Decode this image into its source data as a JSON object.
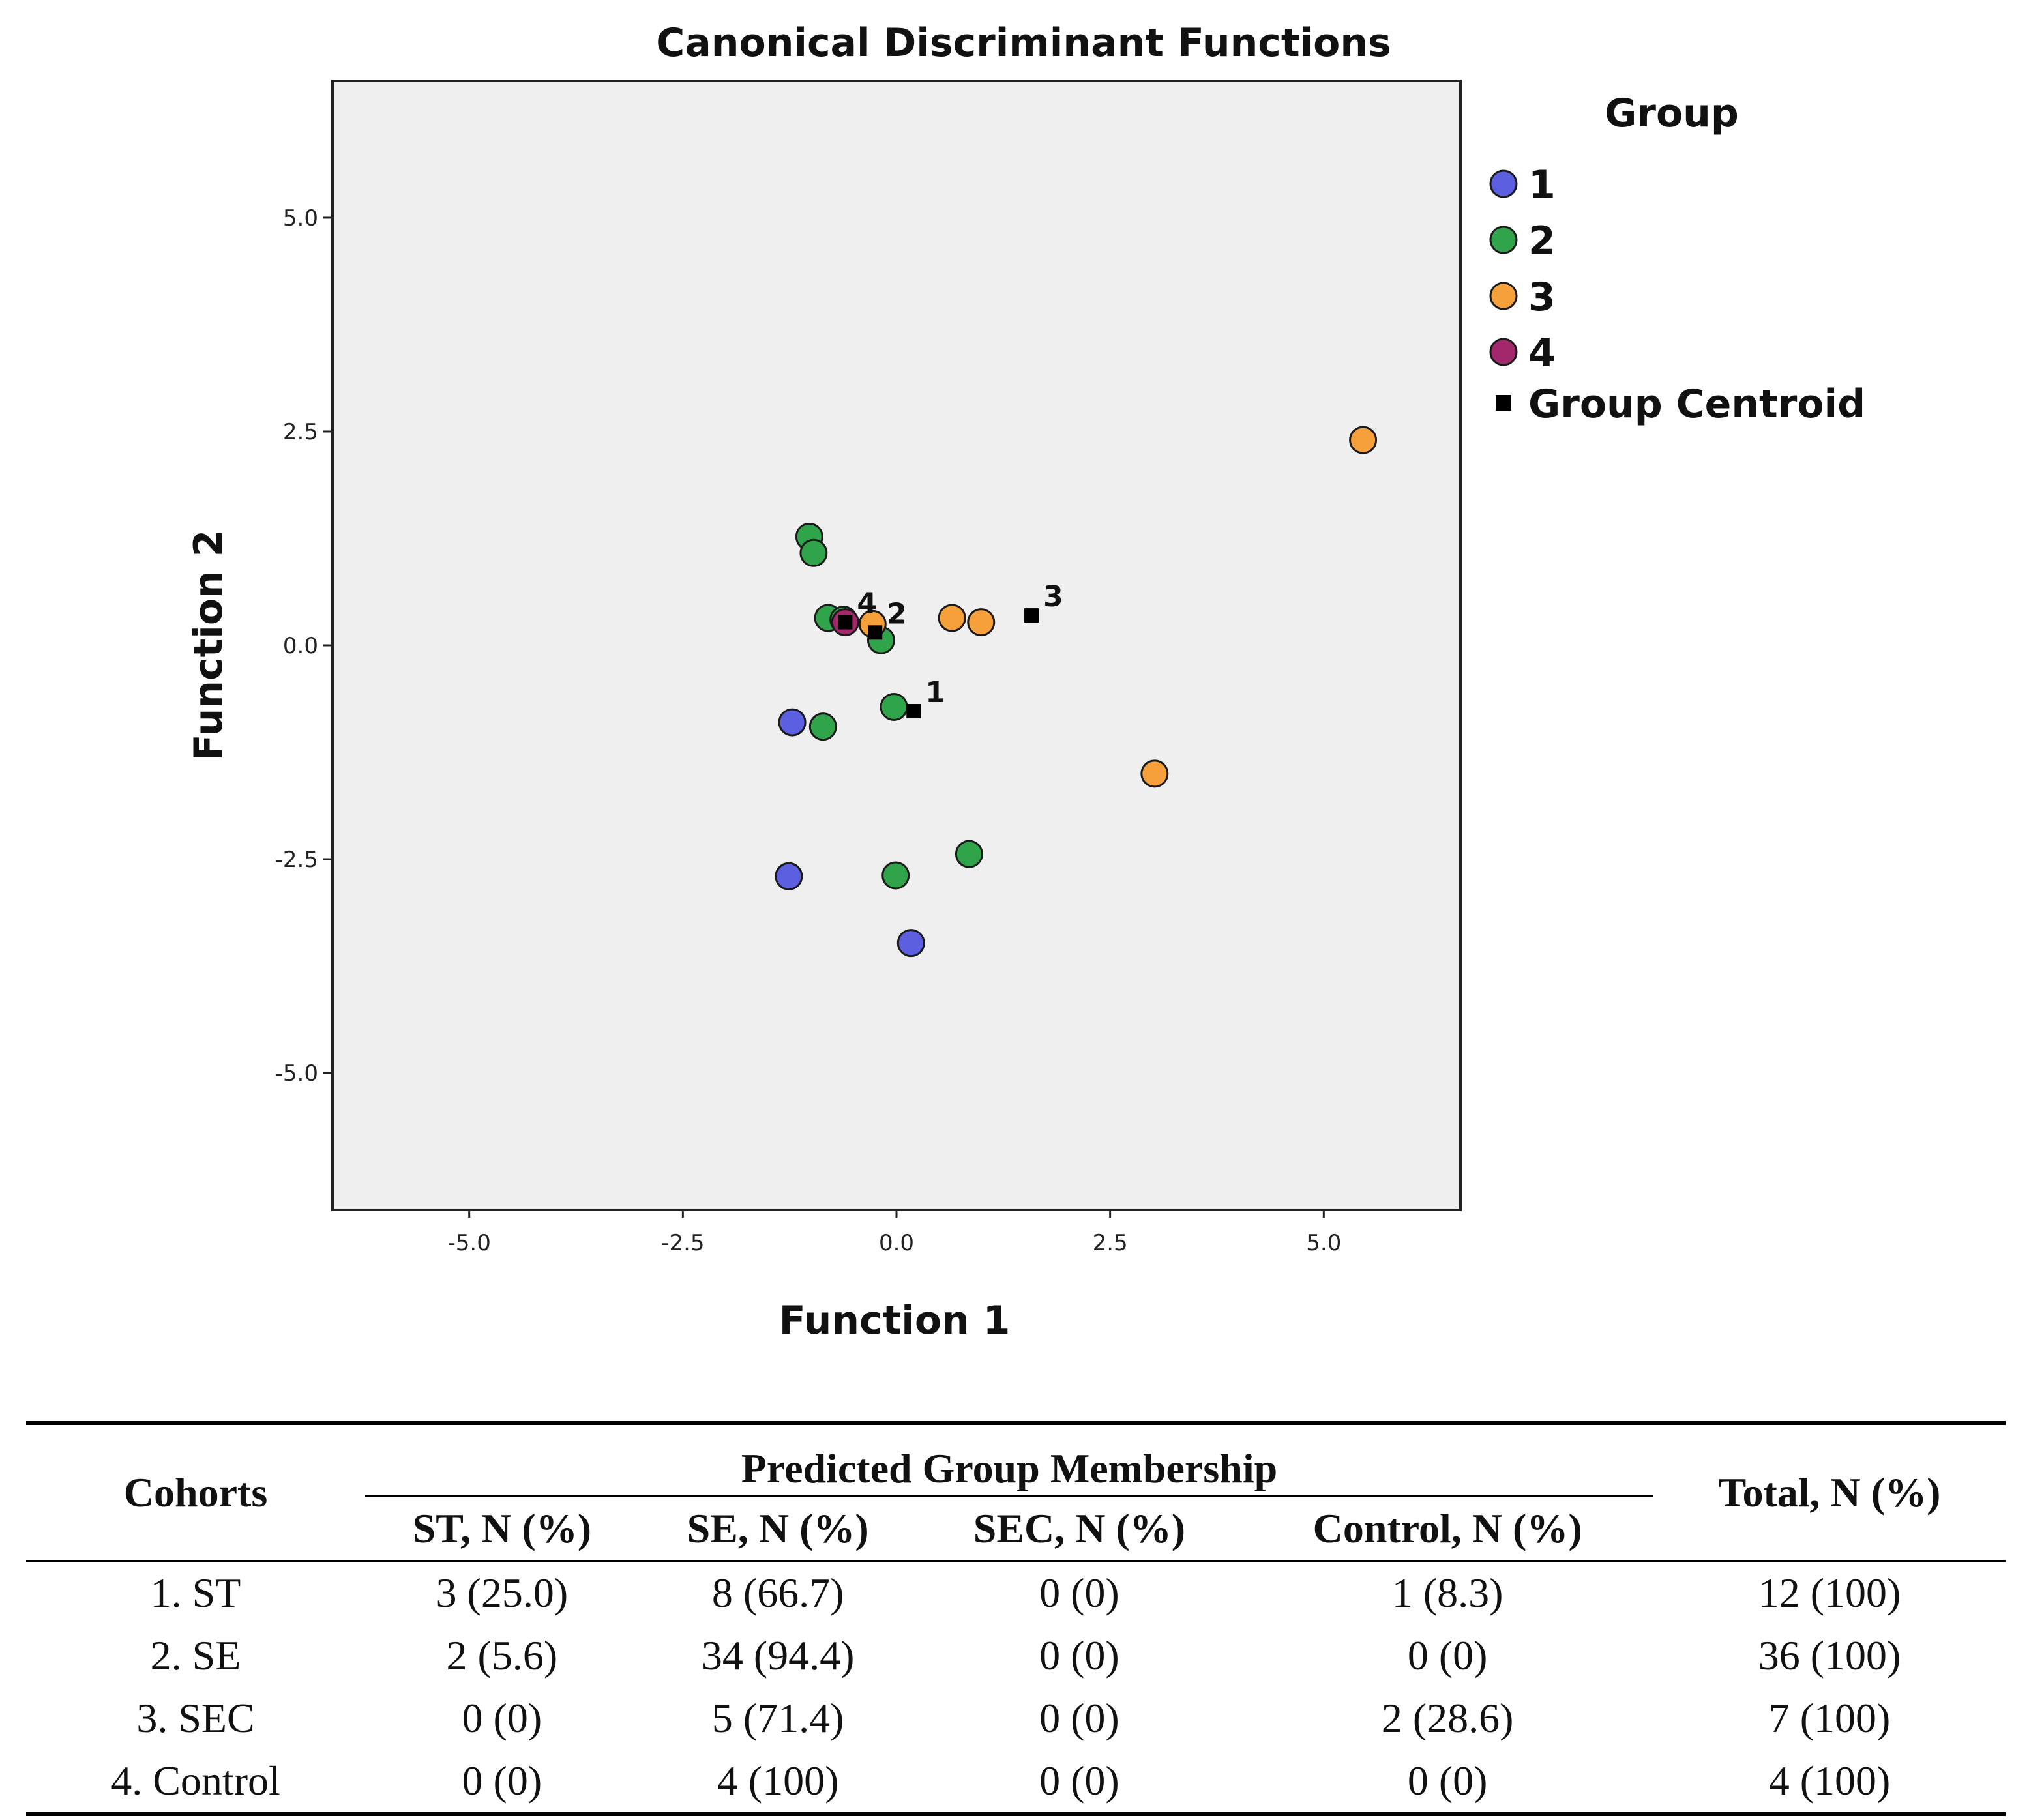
{
  "chart_data": {
    "type": "scatter",
    "title": "Canonical Discriminant Functions",
    "xlabel": "Function 1",
    "ylabel": "Function 2",
    "xlim": [
      -6.6,
      6.6
    ],
    "ylim": [
      -6.6,
      6.6
    ],
    "xticks": [
      -5.0,
      -2.5,
      0.0,
      2.5,
      5.0
    ],
    "yticks": [
      5.0,
      2.5,
      0.0,
      -2.5,
      -5.0
    ],
    "xtick_labels": [
      "-5.0",
      "-2.5",
      "0.0",
      "2.5",
      "5.0"
    ],
    "ytick_labels": [
      "5.0",
      "2.5",
      "0.0",
      "-2.5",
      "-5.0"
    ],
    "grid": false,
    "legend_title": "Group",
    "legend_position": "right",
    "series": [
      {
        "name": "1",
        "color": "#5b5fe0",
        "points": [
          [
            -1.22,
            -0.9
          ],
          [
            -1.26,
            -2.7
          ],
          [
            0.17,
            -3.48
          ]
        ]
      },
      {
        "name": "2",
        "color": "#2fa44a",
        "points": [
          [
            -1.02,
            1.27
          ],
          [
            -0.97,
            1.08
          ],
          [
            -0.8,
            0.32
          ],
          [
            -0.62,
            0.3
          ],
          [
            -0.18,
            0.06
          ],
          [
            -0.03,
            -0.72
          ],
          [
            -0.86,
            -0.95
          ],
          [
            -0.01,
            -2.69
          ],
          [
            0.85,
            -2.44
          ]
        ]
      },
      {
        "name": "3",
        "color": "#f6a03c",
        "points": [
          [
            -0.28,
            0.25
          ],
          [
            0.65,
            0.32
          ],
          [
            0.99,
            0.27
          ],
          [
            3.02,
            -1.5
          ],
          [
            5.46,
            2.4
          ]
        ]
      },
      {
        "name": "4",
        "color": "#a3286b",
        "points": [
          [
            -0.6,
            0.27
          ]
        ]
      }
    ],
    "centroids": [
      {
        "label": "1",
        "x": 0.2,
        "y": -0.77
      },
      {
        "label": "2",
        "x": -0.25,
        "y": 0.15
      },
      {
        "label": "3",
        "x": 1.58,
        "y": 0.35
      },
      {
        "label": "4",
        "x": -0.6,
        "y": 0.27
      }
    ],
    "centroid_legend_label": "Group Centroid"
  },
  "table": {
    "cohorts_header": "Cohorts",
    "predicted_header": "Predicted Group Membership",
    "total_header": "Total, N (%)",
    "sub_headers": [
      "ST, N (%)",
      "SE, N (%)",
      "SEC, N (%)",
      "Control, N (%)"
    ],
    "rows": [
      {
        "cohort": "1. ST",
        "st": "3 (25.0)",
        "se": "8 (66.7)",
        "sec": "0 (0)",
        "control": "1 (8.3)",
        "total": "12 (100)"
      },
      {
        "cohort": "2. SE",
        "st": "2 (5.6)",
        "se": "34 (94.4)",
        "sec": "0 (0)",
        "control": "0 (0)",
        "total": "36 (100)"
      },
      {
        "cohort": "3. SEC",
        "st": "0 (0)",
        "se": "5 (71.4)",
        "sec": "0 (0)",
        "control": "2 (28.6)",
        "total": "7 (100)"
      },
      {
        "cohort": "4. Control",
        "st": "0 (0)",
        "se": "4 (100)",
        "sec": "0 (0)",
        "control": "0 (0)",
        "total": "4 (100)"
      }
    ]
  }
}
